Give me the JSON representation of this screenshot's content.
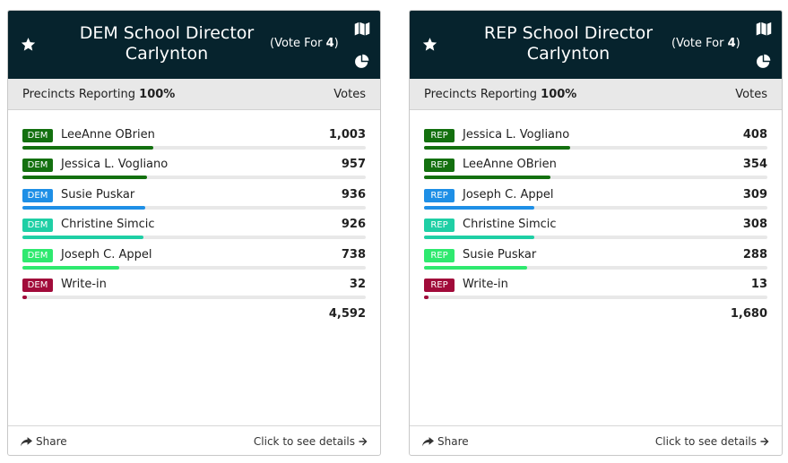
{
  "cards": [
    {
      "title_line1": "DEM School Director",
      "title_line2": "Carlynton",
      "vote_for_prefix": "(Vote For ",
      "vote_for_count": "4",
      "vote_for_suffix": ")",
      "precincts_label": "Precincts Reporting",
      "precincts_value": "100%",
      "votes_header": "Votes",
      "candidates": [
        {
          "party": "DEM",
          "name": "LeeAnne OBrien",
          "votes": "1,003",
          "share": 0.218,
          "color": "#13700f"
        },
        {
          "party": "DEM",
          "name": "Jessica L. Vogliano",
          "votes": "957",
          "share": 0.208,
          "color": "#13700f"
        },
        {
          "party": "DEM",
          "name": "Susie Puskar",
          "votes": "936",
          "share": 0.204,
          "color": "#1e8fe6"
        },
        {
          "party": "DEM",
          "name": "Christine Simcic",
          "votes": "926",
          "share": 0.202,
          "color": "#1fcfa5"
        },
        {
          "party": "DEM",
          "name": "Joseph C. Appel",
          "votes": "738",
          "share": 0.161,
          "color": "#2ee96f"
        },
        {
          "party": "DEM",
          "name": "Write-in",
          "votes": "32",
          "share": 0.007,
          "color": "#a10b3a"
        }
      ],
      "total": "4,592",
      "share_label": "Share",
      "details_label": "Click to see details"
    },
    {
      "title_line1": "REP School Director",
      "title_line2": "Carlynton",
      "vote_for_prefix": "(Vote For ",
      "vote_for_count": "4",
      "vote_for_suffix": ")",
      "precincts_label": "Precincts Reporting",
      "precincts_value": "100%",
      "votes_header": "Votes",
      "candidates": [
        {
          "party": "REP",
          "name": "Jessica L. Vogliano",
          "votes": "408",
          "share": 0.243,
          "color": "#13700f"
        },
        {
          "party": "REP",
          "name": "LeeAnne OBrien",
          "votes": "354",
          "share": 0.211,
          "color": "#13700f"
        },
        {
          "party": "REP",
          "name": "Joseph C. Appel",
          "votes": "309",
          "share": 0.184,
          "color": "#1e8fe6"
        },
        {
          "party": "REP",
          "name": "Christine Simcic",
          "votes": "308",
          "share": 0.183,
          "color": "#1fcfa5"
        },
        {
          "party": "REP",
          "name": "Susie Puskar",
          "votes": "288",
          "share": 0.171,
          "color": "#2ee96f"
        },
        {
          "party": "REP",
          "name": "Write-in",
          "votes": "13",
          "share": 0.008,
          "color": "#a10b3a"
        }
      ],
      "total": "1,680",
      "share_label": "Share",
      "details_label": "Click to see details"
    }
  ],
  "icons": {
    "star": "star-icon",
    "map": "map-icon",
    "pie": "pie-chart-icon",
    "share": "share-icon",
    "arrow": "arrow-right-icon"
  },
  "colors": {
    "header_bg": "#06232d",
    "subheader_bg": "#e8e8e8"
  }
}
